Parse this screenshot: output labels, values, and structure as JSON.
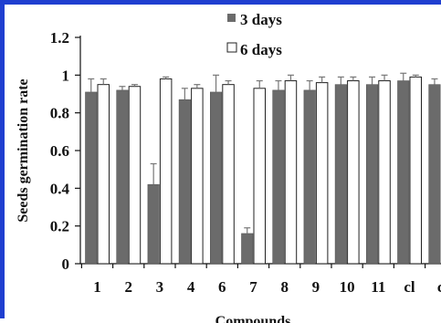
{
  "chart_data": {
    "type": "bar",
    "xlabel": "Compounds",
    "ylabel": "Seeds germination rate",
    "ylim": [
      0,
      1.2
    ],
    "yticks": [
      "0",
      "0.2",
      "0.4",
      "0.6",
      "0.8",
      "1",
      "1.2"
    ],
    "categories": [
      "1",
      "2",
      "3",
      "4",
      "6",
      "7",
      "8",
      "9",
      "10",
      "11",
      "cl",
      "c"
    ],
    "legend_position": "top-left",
    "grid": false,
    "series": [
      {
        "name": "3 days",
        "color": "#6b6b6b",
        "values": [
          0.91,
          0.92,
          0.42,
          0.87,
          0.91,
          0.16,
          0.92,
          0.92,
          0.95,
          0.95,
          0.97,
          0.95
        ],
        "errors": [
          0.07,
          0.02,
          0.11,
          0.06,
          0.09,
          0.03,
          0.05,
          0.05,
          0.04,
          0.04,
          0.04,
          0.03
        ]
      },
      {
        "name": "6 days",
        "color": "#ffffff",
        "values": [
          0.95,
          0.94,
          0.98,
          0.93,
          0.95,
          0.93,
          0.97,
          0.96,
          0.97,
          0.97,
          0.99,
          null
        ],
        "errors": [
          0.03,
          0.01,
          0.01,
          0.02,
          0.02,
          0.04,
          0.03,
          0.03,
          0.02,
          0.03,
          0.01,
          null
        ]
      }
    ]
  }
}
